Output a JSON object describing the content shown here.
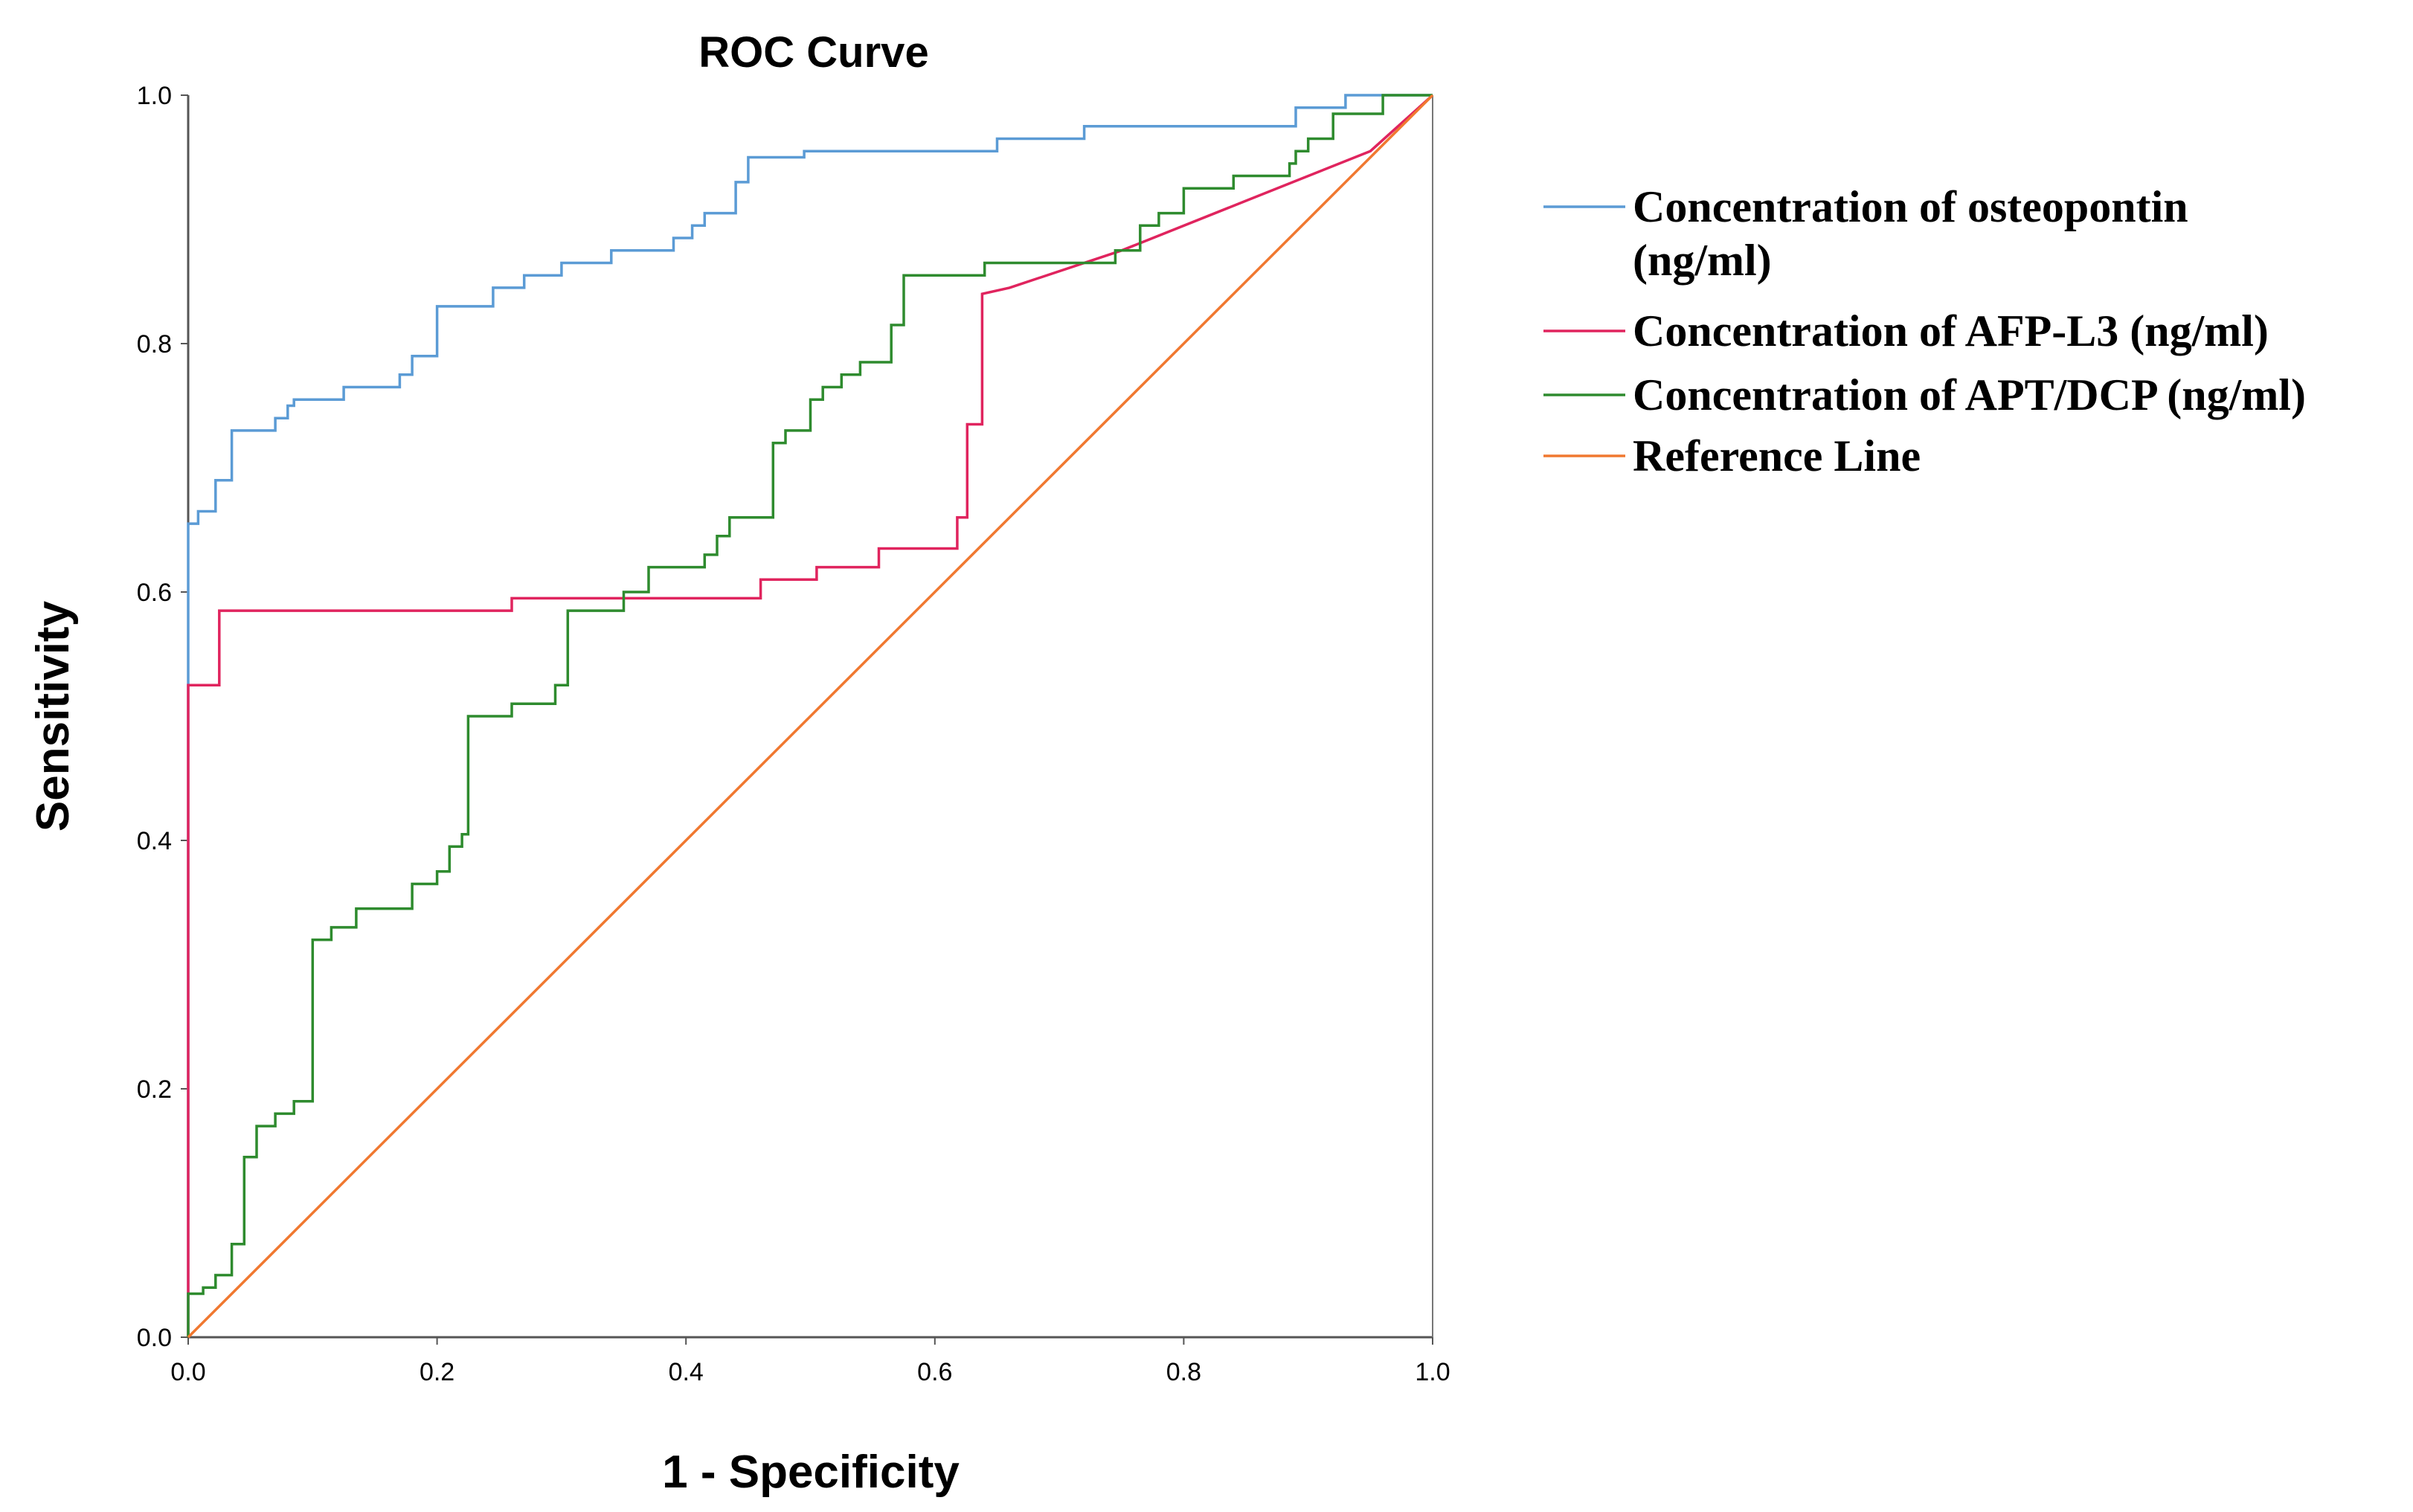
{
  "chart_data": {
    "type": "line",
    "title": "ROC Curve",
    "xlabel": "1 - Specificity",
    "ylabel": "Sensitivity",
    "xlim": [
      0,
      1
    ],
    "ylim": [
      0,
      1
    ],
    "xticks": [
      "0.0",
      "0.2",
      "0.4",
      "0.6",
      "0.8",
      "1.0"
    ],
    "yticks": [
      "0.0",
      "0.2",
      "0.4",
      "0.6",
      "0.8",
      "1.0"
    ],
    "grid": false,
    "legend_position": "right",
    "series": [
      {
        "name": "Concentration of osteopontin (ng/ml)",
        "legend_lines": [
          "Concentration of osteopontin",
          "(ng/ml)"
        ],
        "color": "#5b9bd5",
        "x": [
          0,
          0,
          0.008,
          0.008,
          0.022,
          0.022,
          0.035,
          0.035,
          0.07,
          0.07,
          0.08,
          0.08,
          0.085,
          0.085,
          0.125,
          0.125,
          0.17,
          0.17,
          0.18,
          0.18,
          0.2,
          0.2,
          0.245,
          0.245,
          0.27,
          0.27,
          0.3,
          0.3,
          0.34,
          0.34,
          0.39,
          0.39,
          0.405,
          0.405,
          0.415,
          0.415,
          0.44,
          0.44,
          0.45,
          0.45,
          0.495,
          0.495,
          0.65,
          0.65,
          0.72,
          0.72,
          0.89,
          0.89,
          0.93,
          0.93,
          1.0
        ],
        "y": [
          0,
          0.655,
          0.655,
          0.665,
          0.665,
          0.69,
          0.69,
          0.73,
          0.73,
          0.74,
          0.74,
          0.75,
          0.75,
          0.755,
          0.755,
          0.765,
          0.765,
          0.775,
          0.775,
          0.79,
          0.79,
          0.83,
          0.83,
          0.845,
          0.845,
          0.855,
          0.855,
          0.865,
          0.865,
          0.875,
          0.875,
          0.885,
          0.885,
          0.895,
          0.895,
          0.905,
          0.905,
          0.93,
          0.93,
          0.95,
          0.95,
          0.955,
          0.955,
          0.965,
          0.965,
          0.975,
          0.975,
          0.99,
          0.99,
          1.0,
          1.0
        ]
      },
      {
        "name": "Concentration of AFP-L3 (ng/ml)",
        "legend_lines": [
          "Concentration of AFP-L3 (ng/ml)"
        ],
        "color": "#e0245e",
        "x": [
          0,
          0,
          0.025,
          0.025,
          0.26,
          0.26,
          0.46,
          0.46,
          0.505,
          0.505,
          0.555,
          0.555,
          0.618,
          0.618,
          0.626,
          0.626,
          0.638,
          0.638,
          0.66,
          0.75,
          0.85,
          0.95,
          1.0
        ],
        "y": [
          0,
          0.525,
          0.525,
          0.585,
          0.585,
          0.595,
          0.595,
          0.61,
          0.61,
          0.62,
          0.62,
          0.635,
          0.635,
          0.66,
          0.66,
          0.735,
          0.735,
          0.84,
          0.845,
          0.875,
          0.915,
          0.955,
          1.0
        ]
      },
      {
        "name": "Concentration of APT/DCP (ng/ml)",
        "legend_lines": [
          "Concentration of APT/DCP (ng/ml)"
        ],
        "color": "#2e8b2e",
        "x": [
          0,
          0,
          0.012,
          0.012,
          0.022,
          0.022,
          0.035,
          0.035,
          0.045,
          0.045,
          0.055,
          0.055,
          0.07,
          0.07,
          0.085,
          0.085,
          0.1,
          0.1,
          0.115,
          0.115,
          0.135,
          0.135,
          0.18,
          0.18,
          0.2,
          0.2,
          0.21,
          0.21,
          0.22,
          0.22,
          0.225,
          0.225,
          0.26,
          0.26,
          0.295,
          0.295,
          0.305,
          0.305,
          0.35,
          0.35,
          0.37,
          0.37,
          0.415,
          0.415,
          0.425,
          0.425,
          0.435,
          0.435,
          0.47,
          0.47,
          0.48,
          0.48,
          0.5,
          0.5,
          0.51,
          0.51,
          0.525,
          0.525,
          0.54,
          0.54,
          0.565,
          0.565,
          0.575,
          0.575,
          0.64,
          0.64,
          0.745,
          0.745,
          0.765,
          0.765,
          0.78,
          0.78,
          0.8,
          0.8,
          0.84,
          0.84,
          0.885,
          0.885,
          0.89,
          0.89,
          0.9,
          0.9,
          0.92,
          0.92,
          0.96,
          0.96,
          1.0
        ],
        "y": [
          0,
          0.035,
          0.035,
          0.04,
          0.04,
          0.05,
          0.05,
          0.075,
          0.075,
          0.145,
          0.145,
          0.17,
          0.17,
          0.18,
          0.18,
          0.19,
          0.19,
          0.32,
          0.32,
          0.33,
          0.33,
          0.345,
          0.345,
          0.365,
          0.365,
          0.375,
          0.375,
          0.395,
          0.395,
          0.405,
          0.405,
          0.5,
          0.5,
          0.51,
          0.51,
          0.525,
          0.525,
          0.585,
          0.585,
          0.6,
          0.6,
          0.62,
          0.62,
          0.63,
          0.63,
          0.645,
          0.645,
          0.66,
          0.66,
          0.72,
          0.72,
          0.73,
          0.73,
          0.755,
          0.755,
          0.765,
          0.765,
          0.775,
          0.775,
          0.785,
          0.785,
          0.815,
          0.815,
          0.855,
          0.855,
          0.865,
          0.865,
          0.875,
          0.875,
          0.895,
          0.895,
          0.905,
          0.905,
          0.925,
          0.925,
          0.935,
          0.935,
          0.945,
          0.945,
          0.955,
          0.955,
          0.965,
          0.965,
          0.985,
          0.985,
          1.0,
          1.0
        ]
      },
      {
        "name": "Reference Line",
        "legend_lines": [
          "Reference Line"
        ],
        "color": "#f07830",
        "x": [
          0,
          1
        ],
        "y": [
          0,
          1
        ]
      }
    ]
  }
}
